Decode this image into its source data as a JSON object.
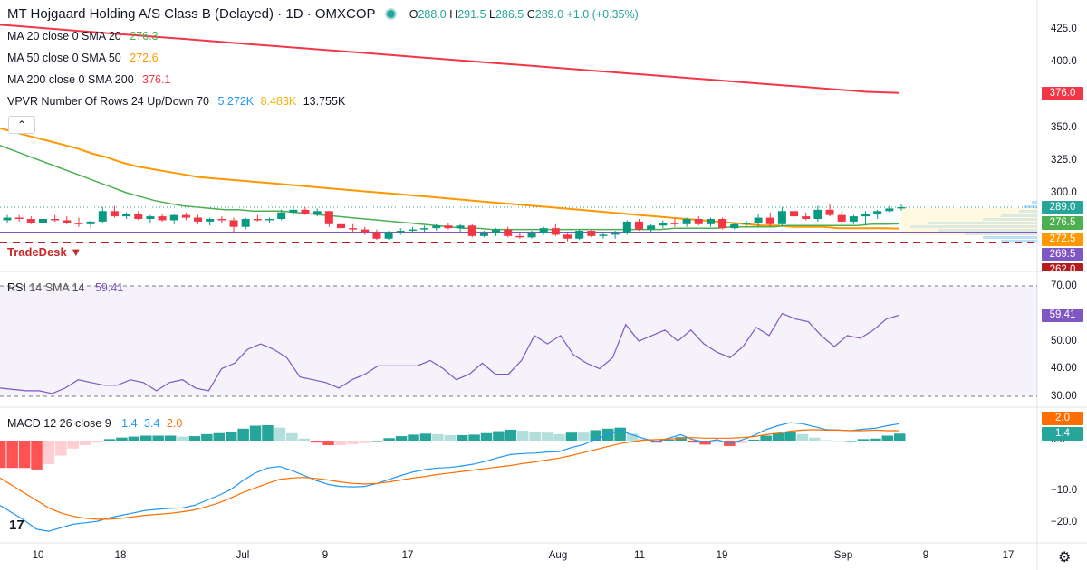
{
  "header": {
    "title": "MT Hojgaard Holding A/S Class B (Delayed) · 1D · OMXCOP",
    "o_label": "O",
    "o": "288.0",
    "h_label": "H",
    "h": "291.5",
    "l_label": "L",
    "l": "286.5",
    "c_label": "C",
    "c": "289.0",
    "change": "+1.0 (+0.35%)"
  },
  "indicators": {
    "ma20": {
      "label": "MA 20 close 0 SMA 20",
      "value": "276.3",
      "color": "#4caf50"
    },
    "ma50": {
      "label": "MA 50 close 0 SMA 50",
      "value": "272.6",
      "color": "#ff9800"
    },
    "ma200": {
      "label": "MA 200 close 0 SMA 200",
      "value": "376.1",
      "color": "#f23645"
    },
    "vpvr": {
      "label": "VPVR Number Of Rows 24 Up/Down 70",
      "up": "5.272K",
      "down": "8.483K",
      "total": "13.755K"
    }
  },
  "watermark": "TradeDesk",
  "price_axis": {
    "ticks": [
      "425.0",
      "400.0",
      "350.0",
      "325.0",
      "300.0"
    ],
    "badges": [
      {
        "label": "376.0",
        "color": "#f23645"
      },
      {
        "label": "289.0",
        "color": "#26a69a"
      },
      {
        "label": "276.5",
        "color": "#4caf50"
      },
      {
        "label": "272.5",
        "color": "#ff9800"
      },
      {
        "label": "269.5",
        "color": "#7e57c2"
      },
      {
        "label": "262.0",
        "color": "#b71c1c"
      }
    ]
  },
  "rsi": {
    "label": "RSI",
    "params": "14 SMA 14",
    "value": "59.41",
    "ticks": [
      "70.00",
      "50.00",
      "40.00",
      "30.00"
    ],
    "badge": "59.41"
  },
  "macd": {
    "label": "MACD",
    "params": "12 26 close 9",
    "v1": "1.4",
    "v2": "3.4",
    "v3": "2.0",
    "ticks": [
      "0.0",
      "−10.0",
      "−20.0"
    ],
    "badges": [
      "2.0",
      "1.4"
    ]
  },
  "time_axis": [
    "10",
    "18",
    "Jul",
    "9",
    "17",
    "Aug",
    "11",
    "19",
    "Sep",
    "9",
    "17"
  ],
  "chart_data": {
    "type": "candlestick",
    "title": "MT Hojgaard Holding A/S Class B (Delayed) · 1D · OMXCOP",
    "ohlc": [
      [
        279,
        283,
        277,
        281
      ],
      [
        281,
        283,
        278,
        280
      ],
      [
        280,
        282,
        276,
        277
      ],
      [
        277,
        281,
        275,
        280
      ],
      [
        280,
        283,
        278,
        279
      ],
      [
        279,
        282,
        276,
        277
      ],
      [
        277,
        281,
        274,
        276
      ],
      [
        276,
        279,
        273,
        278
      ],
      [
        278,
        289,
        277,
        286
      ],
      [
        286,
        290,
        281,
        282
      ],
      [
        282,
        285,
        280,
        284
      ],
      [
        284,
        286,
        279,
        280
      ],
      [
        280,
        283,
        277,
        282
      ],
      [
        282,
        284,
        278,
        279
      ],
      [
        279,
        284,
        276,
        283
      ],
      [
        283,
        285,
        279,
        281
      ],
      [
        281,
        283,
        276,
        278
      ],
      [
        278,
        281,
        275,
        280
      ],
      [
        280,
        282,
        277,
        279
      ],
      [
        279,
        281,
        270,
        274
      ],
      [
        274,
        281,
        272,
        280
      ],
      [
        280,
        283,
        278,
        279
      ],
      [
        279,
        281,
        277,
        280
      ],
      [
        280,
        287,
        279,
        285
      ],
      [
        285,
        290,
        283,
        287
      ],
      [
        287,
        289,
        283,
        284
      ],
      [
        284,
        288,
        282,
        286
      ],
      [
        286,
        286,
        274,
        276
      ],
      [
        276,
        278,
        272,
        273
      ],
      [
        273,
        276,
        270,
        272
      ],
      [
        272,
        274,
        268,
        270
      ],
      [
        270,
        272,
        264,
        265
      ],
      [
        265,
        271,
        264,
        270
      ],
      [
        270,
        273,
        268,
        271
      ],
      [
        271,
        274,
        270,
        272
      ],
      [
        272,
        275,
        270,
        273
      ],
      [
        273,
        276,
        271,
        275
      ],
      [
        275,
        277,
        272,
        273
      ],
      [
        273,
        276,
        270,
        275
      ],
      [
        275,
        276,
        266,
        267
      ],
      [
        267,
        271,
        266,
        269
      ],
      [
        269,
        273,
        267,
        272
      ],
      [
        272,
        274,
        266,
        267
      ],
      [
        267,
        269,
        265,
        266
      ],
      [
        266,
        271,
        265,
        269
      ],
      [
        269,
        274,
        268,
        273
      ],
      [
        273,
        276,
        267,
        268
      ],
      [
        268,
        269,
        263,
        265
      ],
      [
        265,
        272,
        264,
        271
      ],
      [
        271,
        272,
        266,
        267
      ],
      [
        267,
        269,
        265,
        268
      ],
      [
        268,
        271,
        265,
        269
      ],
      [
        269,
        279,
        268,
        278
      ],
      [
        278,
        280,
        271,
        272
      ],
      [
        272,
        276,
        270,
        275
      ],
      [
        275,
        279,
        273,
        277
      ],
      [
        277,
        280,
        274,
        276
      ],
      [
        276,
        281,
        274,
        280
      ],
      [
        280,
        282,
        275,
        276
      ],
      [
        276,
        281,
        274,
        280
      ],
      [
        280,
        281,
        272,
        273
      ],
      [
        273,
        277,
        272,
        276
      ],
      [
        276,
        279,
        274,
        277
      ],
      [
        277,
        284,
        274,
        281
      ],
      [
        281,
        285,
        274,
        276
      ],
      [
        276,
        289,
        275,
        286
      ],
      [
        286,
        290,
        280,
        282
      ],
      [
        282,
        285,
        279,
        280
      ],
      [
        280,
        290,
        278,
        287
      ],
      [
        287,
        291,
        282,
        283
      ],
      [
        283,
        286,
        277,
        278
      ],
      [
        278,
        283,
        276,
        282
      ],
      [
        282,
        286,
        275,
        284
      ],
      [
        284,
        287,
        280,
        286
      ],
      [
        286,
        290,
        285,
        288
      ],
      [
        288,
        291.5,
        286.5,
        289
      ]
    ],
    "ma20": [
      336,
      332,
      328,
      324,
      320,
      316,
      312,
      308,
      304,
      300,
      297,
      294,
      292,
      290,
      289,
      288,
      287,
      287,
      286,
      286,
      286,
      285,
      284,
      283,
      282,
      281,
      280,
      279,
      278,
      277,
      276,
      275,
      274,
      273,
      273,
      272,
      272,
      272,
      272,
      272,
      272,
      272,
      272,
      272,
      272,
      272,
      272,
      272,
      273,
      273,
      273,
      273,
      274,
      274,
      274,
      274,
      275,
      275,
      275,
      275,
      275,
      275,
      276,
      276,
      276.3
    ],
    "ma50": [
      349,
      346,
      343,
      340,
      337,
      334,
      330,
      327,
      323,
      320,
      318,
      316,
      314,
      312,
      311,
      310,
      309,
      308,
      307,
      306,
      305,
      304,
      303,
      302,
      301,
      300,
      299,
      298,
      297,
      296,
      295,
      294,
      293,
      292,
      291,
      290,
      289,
      288,
      287,
      286,
      285,
      284,
      283,
      282,
      281,
      280,
      279,
      278,
      277,
      276,
      275,
      275,
      274,
      274,
      274,
      273,
      273,
      273,
      273,
      272.6
    ],
    "ma200": [
      428,
      427,
      426,
      425,
      424,
      423,
      422,
      421,
      420,
      419,
      418,
      417,
      416,
      415,
      414,
      413,
      412,
      411,
      410,
      409,
      408,
      407,
      406,
      405,
      404,
      403,
      402,
      401,
      400,
      399,
      398,
      397,
      396,
      395,
      394,
      393,
      392,
      391,
      390,
      389,
      388,
      387,
      386,
      385,
      384,
      383,
      382,
      381,
      380,
      379,
      378,
      377,
      376.5,
      376.1
    ],
    "rsi": [
      33,
      32.5,
      32,
      32,
      31,
      33,
      36,
      35,
      34,
      34,
      36,
      35,
      32,
      35,
      36,
      33,
      32,
      40,
      42,
      47,
      49,
      47,
      44,
      37,
      36,
      35,
      33,
      36,
      38,
      41,
      41,
      41,
      41,
      43,
      40,
      36,
      38,
      42,
      38,
      38,
      43,
      52,
      49,
      52,
      45,
      42,
      40,
      44,
      56,
      50,
      52,
      54,
      50,
      54,
      49,
      46,
      44,
      48,
      55,
      52,
      60,
      58,
      57,
      52,
      48,
      52,
      51,
      54,
      58,
      59.41
    ],
    "macd": [
      -13,
      -14.5,
      -16,
      -17.8,
      -18.2,
      -17.5,
      -16.8,
      -16.5,
      -16.2,
      -15.5,
      -15,
      -14.5,
      -14,
      -13.8,
      -13.6,
      -13.5,
      -13,
      -12,
      -11,
      -9.8,
      -8,
      -6.5,
      -5.5,
      -5.2,
      -6,
      -7,
      -8,
      -8.8,
      -9.2,
      -9.3,
      -9.2,
      -8.6,
      -7.8,
      -7,
      -6.3,
      -5.8,
      -5.5,
      -5.4,
      -5.1,
      -4.7,
      -4.1,
      -3.4,
      -2.8,
      -2.6,
      -2.5,
      -2.3,
      -2.2,
      -1.4,
      -0.8,
      0.3,
      1.2,
      2.0,
      1.2,
      0.4,
      -0.2,
      0.5,
      1.2,
      0.2,
      -0.3,
      0.2,
      -0.6,
      0.1,
      1.0,
      2.2,
      3.0,
      3.6,
      3.4,
      2.8,
      2.2,
      2.1,
      2.0,
      2.3,
      2.5,
      3.0,
      3.4
    ],
    "signal": [
      -7.5,
      -9,
      -10.5,
      -12,
      -13.5,
      -14.5,
      -15.2,
      -15.6,
      -15.8,
      -15.8,
      -15.6,
      -15.3,
      -15,
      -14.8,
      -14.6,
      -14.3,
      -13.9,
      -13.3,
      -12.5,
      -11.5,
      -10.4,
      -9.5,
      -8.6,
      -7.8,
      -7.5,
      -7.4,
      -7.6,
      -7.9,
      -8.3,
      -8.6,
      -8.7,
      -8.6,
      -8.3,
      -7.9,
      -7.5,
      -7.2,
      -6.8,
      -6.5,
      -6.2,
      -5.9,
      -5.6,
      -5.3,
      -5.0,
      -4.6,
      -4.3,
      -3.9,
      -3.5,
      -3.0,
      -2.4,
      -1.8,
      -1.2,
      -0.6,
      -0.2,
      0.1,
      0.2,
      0.3,
      0.5,
      0.6,
      0.5,
      0.5,
      0.5,
      0.6,
      0.8,
      1.2,
      1.5,
      1.9,
      2.1,
      2.2,
      2.1,
      2.1,
      2.0,
      2.0,
      2.1,
      2.0,
      2.0
    ]
  }
}
